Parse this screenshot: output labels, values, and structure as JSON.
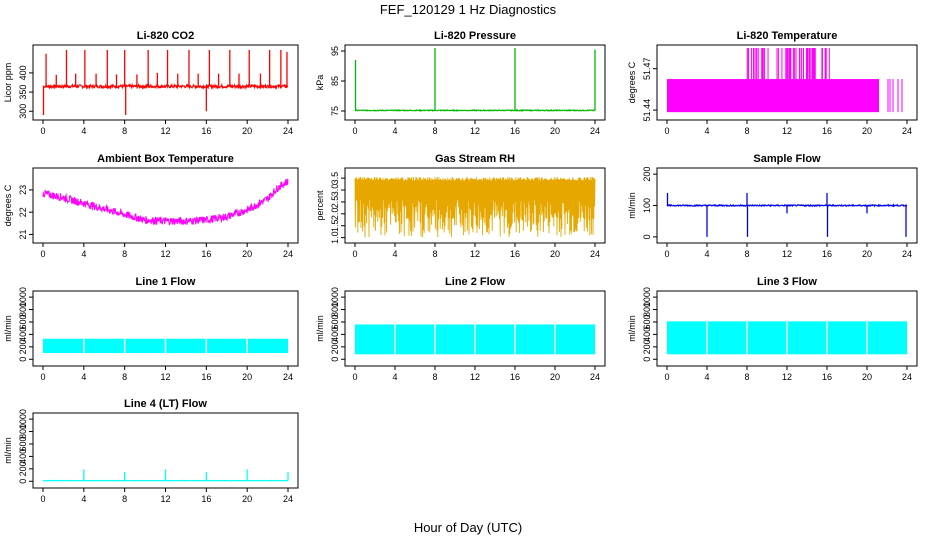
{
  "figure": {
    "title": "FEF_120129  1 Hz Diagnostics",
    "xlabel": "Hour of Day (UTC)"
  },
  "chart_data": [
    {
      "id": "co2",
      "type": "line",
      "title": "Li-820 CO2",
      "ylabel": "Licor ppm",
      "color": "#ff0000",
      "xlim": [
        0,
        24
      ],
      "ylim": [
        285,
        465
      ],
      "yticks": [
        300,
        350,
        400
      ],
      "xticks": [
        0,
        4,
        8,
        12,
        16,
        20,
        24
      ],
      "series": [
        {
          "pattern": "flat",
          "base": 365,
          "noise": 4,
          "x_start": 0,
          "x_end": 24,
          "spikes": [
            {
              "x": 0.05,
              "y": 290
            },
            {
              "x": 0.3,
              "y": 450
            },
            {
              "x": 1.3,
              "y": 395
            },
            {
              "x": 2.3,
              "y": 460
            },
            {
              "x": 3.2,
              "y": 398
            },
            {
              "x": 4.1,
              "y": 460
            },
            {
              "x": 5.2,
              "y": 398
            },
            {
              "x": 6.3,
              "y": 460
            },
            {
              "x": 7.2,
              "y": 396
            },
            {
              "x": 8.0,
              "y": 460
            },
            {
              "x": 8.1,
              "y": 290
            },
            {
              "x": 9.2,
              "y": 396
            },
            {
              "x": 10.3,
              "y": 460
            },
            {
              "x": 11.2,
              "y": 400
            },
            {
              "x": 12.2,
              "y": 460
            },
            {
              "x": 13.2,
              "y": 398
            },
            {
              "x": 14.3,
              "y": 460
            },
            {
              "x": 15.2,
              "y": 398
            },
            {
              "x": 16.0,
              "y": 300
            },
            {
              "x": 16.3,
              "y": 460
            },
            {
              "x": 17.2,
              "y": 398
            },
            {
              "x": 18.3,
              "y": 460
            },
            {
              "x": 19.2,
              "y": 398
            },
            {
              "x": 20.2,
              "y": 460
            },
            {
              "x": 21.3,
              "y": 398
            },
            {
              "x": 22.2,
              "y": 460
            },
            {
              "x": 23.3,
              "y": 460
            },
            {
              "x": 23.9,
              "y": 455
            }
          ]
        }
      ]
    },
    {
      "id": "pressure",
      "type": "line",
      "title": "Li-820 Pressure",
      "ylabel": "kPa",
      "color": "#00bb00",
      "xlim": [
        0,
        24
      ],
      "ylim": [
        73,
        96
      ],
      "yticks": [
        75,
        85,
        95
      ],
      "xticks": [
        0,
        4,
        8,
        12,
        16,
        20,
        24
      ],
      "series": [
        {
          "pattern": "flat",
          "base": 75.2,
          "noise": 0.15,
          "x_start": 0,
          "x_end": 24,
          "spikes": [
            {
              "x": 0.05,
              "y": 92
            },
            {
              "x": 8.0,
              "y": 96
            },
            {
              "x": 16.0,
              "y": 96
            },
            {
              "x": 24.0,
              "y": 95.5
            }
          ]
        }
      ]
    },
    {
      "id": "licor_temp",
      "type": "line",
      "title": "Li-820 Temperature",
      "ylabel": "degrees C",
      "color": "#ff00ff",
      "xlim": [
        0,
        24
      ],
      "ylim": [
        51.435,
        51.485
      ],
      "yticks": [
        51.44,
        51.47
      ],
      "xticks": [
        0,
        4,
        8,
        12,
        16,
        20,
        24
      ],
      "series": [
        {
          "pattern": "square",
          "low": 51.4385,
          "high": 51.4625,
          "x_start": 0,
          "x_end": 21.2,
          "top_level": 51.485,
          "top_x_start": 8.0,
          "top_x_end": 16.5,
          "tail": [
            22.1,
            22.3,
            22.6,
            23.1,
            23.5
          ]
        }
      ]
    },
    {
      "id": "ambient",
      "type": "line",
      "title": "Ambient Box Temperature",
      "ylabel": "degrees C",
      "color": "#ff00ff",
      "xlim": [
        0,
        24
      ],
      "ylim": [
        20.75,
        23.85
      ],
      "yticks": [
        21,
        22,
        23
      ],
      "xticks": [
        0,
        4,
        8,
        12,
        16,
        20,
        24
      ],
      "series": [
        {
          "pattern": "band",
          "curve": [
            [
              0,
              22.85
            ],
            [
              2,
              22.65
            ],
            [
              4,
              22.4
            ],
            [
              6,
              22.15
            ],
            [
              8,
              21.9
            ],
            [
              10,
              21.65
            ],
            [
              12,
              21.6
            ],
            [
              14,
              21.6
            ],
            [
              16,
              21.65
            ],
            [
              18,
              21.8
            ],
            [
              20,
              22.1
            ],
            [
              22,
              22.6
            ],
            [
              23,
              23.1
            ],
            [
              24,
              23.4
            ]
          ],
          "spread": 0.35,
          "x_start": 0,
          "x_end": 24
        }
      ]
    },
    {
      "id": "rh",
      "type": "line",
      "title": "Gas Stream RH",
      "ylabel": "percent",
      "color": "#e6a800",
      "xlim": [
        0,
        24
      ],
      "ylim": [
        0.9,
        3.8
      ],
      "yticks": [
        1.0,
        1.5,
        2.0,
        2.5,
        3.0,
        3.5
      ],
      "xticks": [
        0,
        4,
        8,
        12,
        16,
        20,
        24
      ],
      "series": [
        {
          "pattern": "dense",
          "high": 3.55,
          "low": 1.0,
          "x_start": 0,
          "x_end": 24
        }
      ]
    },
    {
      "id": "sample_flow",
      "type": "line",
      "title": "Sample Flow",
      "ylabel": "ml/min",
      "color": "#0000ee",
      "xlim": [
        0,
        24
      ],
      "ylim": [
        -10,
        210
      ],
      "yticks": [
        0,
        100,
        200
      ],
      "xticks": [
        0,
        4,
        8,
        12,
        16,
        20,
        24
      ],
      "series": [
        {
          "pattern": "flat",
          "base": 100,
          "noise": 2,
          "x_start": 0,
          "x_end": 24,
          "spikes": [
            {
              "x": 0.05,
              "y": 140
            },
            {
              "x": 4.0,
              "y": 0
            },
            {
              "x": 8.0,
              "y": 140
            },
            {
              "x": 8.05,
              "y": 0
            },
            {
              "x": 12.0,
              "y": 75
            },
            {
              "x": 16.0,
              "y": 140
            },
            {
              "x": 16.05,
              "y": 0
            },
            {
              "x": 20.0,
              "y": 75
            },
            {
              "x": 23.9,
              "y": 0
            }
          ]
        }
      ]
    },
    {
      "id": "line1",
      "type": "line",
      "title": "Line 1 Flow",
      "ylabel": "ml/min",
      "color": "#00ffff",
      "xlim": [
        0,
        24
      ],
      "ylim": [
        -60,
        1050
      ],
      "yticks": [
        0,
        200,
        400,
        600,
        800,
        1000
      ],
      "xticks": [
        0,
        4,
        8,
        12,
        16,
        20,
        24
      ],
      "series": [
        {
          "pattern": "block",
          "high": 330,
          "low": 100,
          "x_start": 0,
          "x_end": 24,
          "gaps": [
            4,
            8,
            12,
            16,
            20
          ]
        }
      ]
    },
    {
      "id": "line2",
      "type": "line",
      "title": "Line 2 Flow",
      "ylabel": "ml/min",
      "color": "#00ffff",
      "xlim": [
        0,
        24
      ],
      "ylim": [
        -60,
        1050
      ],
      "yticks": [
        0,
        200,
        400,
        600,
        800,
        1000
      ],
      "xticks": [
        0,
        4,
        8,
        12,
        16,
        20,
        24
      ],
      "series": [
        {
          "pattern": "block",
          "high": 560,
          "low": 80,
          "x_start": 0,
          "x_end": 24,
          "gaps": [
            4,
            8,
            12,
            16,
            20
          ]
        }
      ]
    },
    {
      "id": "line3",
      "type": "line",
      "title": "Line 3 Flow",
      "ylabel": "ml/min",
      "color": "#00ffff",
      "xlim": [
        0,
        24
      ],
      "ylim": [
        -60,
        1050
      ],
      "yticks": [
        0,
        200,
        400,
        600,
        800,
        1000
      ],
      "xticks": [
        0,
        4,
        8,
        12,
        16,
        20,
        24
      ],
      "series": [
        {
          "pattern": "block",
          "high": 610,
          "low": 80,
          "x_start": 0,
          "x_end": 24,
          "gaps": [
            4,
            8,
            12,
            16,
            20
          ]
        }
      ]
    },
    {
      "id": "line4",
      "type": "line",
      "title": "Line 4 (LT) Flow",
      "ylabel": "ml/min",
      "color": "#00ffff",
      "xlim": [
        0,
        24
      ],
      "ylim": [
        -60,
        1050
      ],
      "yticks": [
        0,
        200,
        400,
        600,
        800,
        1000
      ],
      "xticks": [
        0,
        4,
        8,
        12,
        16,
        20,
        24
      ],
      "series": [
        {
          "pattern": "flat",
          "base": 10,
          "noise": 3,
          "x_start": 0,
          "x_end": 24,
          "spikes": [
            {
              "x": 4.0,
              "y": 190
            },
            {
              "x": 8.0,
              "y": 150
            },
            {
              "x": 12.0,
              "y": 190
            },
            {
              "x": 16.0,
              "y": 150
            },
            {
              "x": 20.0,
              "y": 190
            },
            {
              "x": 24.0,
              "y": 150
            }
          ]
        }
      ]
    }
  ]
}
